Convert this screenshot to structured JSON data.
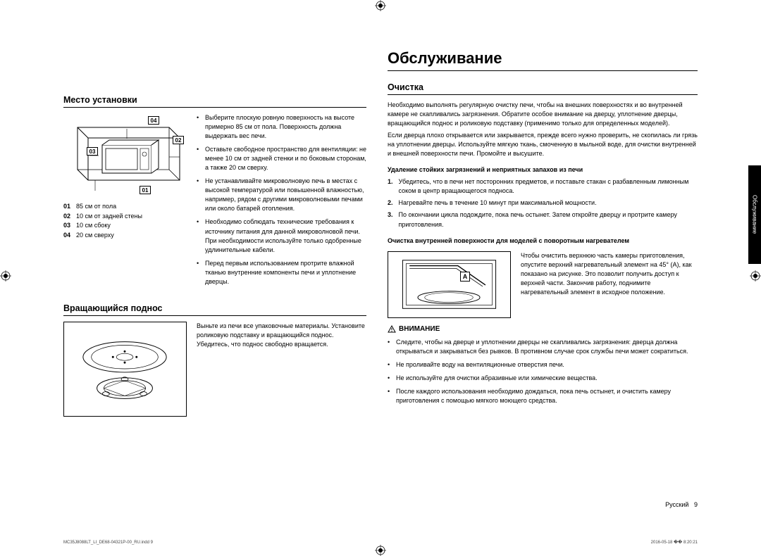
{
  "crop_mark_color": "#000000",
  "side_tab": "Обслуживание",
  "main_title": "Обслуживание",
  "left": {
    "install_title": "Место установки",
    "install_callouts": {
      "c01": "01",
      "c02": "02",
      "c03": "03",
      "c04": "04"
    },
    "install_legend": [
      {
        "key": "01",
        "val": "85 см от пола"
      },
      {
        "key": "02",
        "val": "10 см от задней стены"
      },
      {
        "key": "03",
        "val": "10 см сбоку"
      },
      {
        "key": "04",
        "val": "20 см сверху"
      }
    ],
    "install_bullets": [
      "Выберите плоскую ровную поверхность на высоте примерно 85 см от пола. Поверхность должна выдержать вес печи.",
      "Оставьте свободное пространство для вентиляции: не менее 10 см от задней стенки и по боковым сторонам, а также 20 см сверху.",
      "Не устанавливайте микроволновую печь в местах с высокой температурой или повышенной влажностью, например, рядом с другими микроволновыми печами или около батарей отопления.",
      "Необходимо соблюдать технические требования к источнику питания для данной микроволновой печи. При необходимости используйте только одобренные удлинительные кабели.",
      "Перед первым использованием протрите влажной тканью внутренние компоненты печи и уплотнение дверцы."
    ],
    "tray_title": "Вращающийся поднос",
    "tray_text": "Выньте из печи все упаковочные материалы. Установите роликовую подставку и вращающийся поднос. Убедитесь, что поднос свободно вращается."
  },
  "right": {
    "cleaning_title": "Очистка",
    "cleaning_intro": "Необходимо выполнять регулярную очистку печи, чтобы на внешних поверхностях и во внутренней камере не скапливались загрязнения. Обратите особое внимание на дверцу, уплотнение дверцы, вращающийся поднос и роликовую подставку (применимо только для определенных моделей).",
    "cleaning_intro2": "Если дверца плохо открывается или закрывается, прежде всего нужно проверить, не скопилась ли грязь на уплотнении дверцы. Используйте мягкую ткань, смоченную в мыльной воде, для очистки внутренней и внешней поверхности печи. Промойте и высушите.",
    "stains_title": "Удаление стойких загрязнений и неприятных запахов из печи",
    "stains_steps": [
      {
        "n": "1.",
        "t": "Убедитесь, что в печи нет посторонних предметов, и поставьте стакан с разбавленным лимонным соком в центр вращающегося подноса."
      },
      {
        "n": "2.",
        "t": "Нагревайте печь в течение 10 минут при максимальной мощности."
      },
      {
        "n": "3.",
        "t": "По окончании цикла подождите, пока печь остынет. Затем откройте дверцу и протрите камеру приготовления."
      }
    ],
    "swivel_title": "Очистка внутренней поверхности для моделей с поворотным нагревателем",
    "swivel_callout": "A",
    "swivel_text": "Чтобы очистить верхнюю часть камеры приготовления, опустите верхний нагревательный элемент на 45° (А), как показано на рисунке. Это позволит получить доступ к верхней части. Закончив работу, поднимите нагревательный элемент в исходное положение.",
    "attention_title": "ВНИМАНИЕ",
    "attention_bullets": [
      "Следите, чтобы на дверце и уплотнении дверцы не скапливались загрязнения: дверца должна открываться и закрываться без рывков. В противном случае срок службы печи может сократиться.",
      "Не проливайте воду на вентиляционные отверстия печи.",
      "Не используйте для очистки абразивные или химические вещества.",
      "После каждого использования необходимо дождаться, пока печь остынет, и очистить камеру приготовления с помощью мягкого моющего средства."
    ]
  },
  "footer": {
    "lang": "Русский",
    "page": "9"
  },
  "imprint_left": "MC35J8088LT_LI_DE68-04321P-00_RU.indd   9",
  "imprint_right": "2016-05-18   �� 8:20:21"
}
